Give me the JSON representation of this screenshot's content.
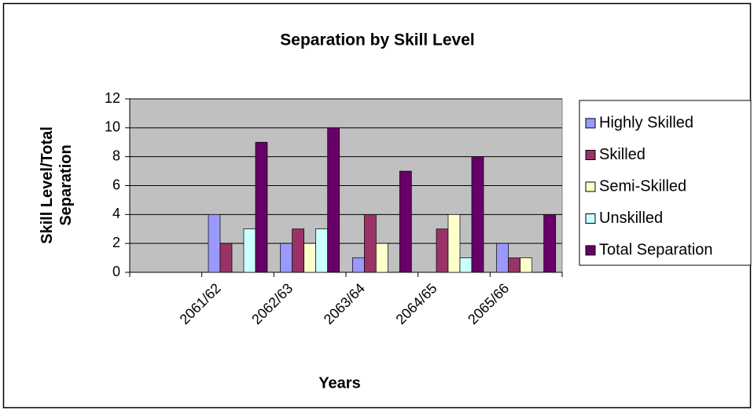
{
  "chart_data": {
    "type": "bar",
    "title": "Separation by Skill Level",
    "x_label": "Years",
    "y_label": "Skill Level/Total Separation",
    "categories": [
      null,
      "2061/62",
      "2062/63",
      "2063/64",
      "2064/65",
      "2065/66"
    ],
    "series": [
      {
        "name": "Highly Skilled",
        "color": "#9999ff",
        "values": [
          null,
          4,
          2,
          1,
          0,
          2
        ]
      },
      {
        "name": "Skilled",
        "color": "#993366",
        "values": [
          null,
          2,
          3,
          4,
          3,
          1
        ]
      },
      {
        "name": "Semi-Skilled",
        "color": "#ffffcc",
        "values": [
          null,
          0,
          2,
          2,
          4,
          1
        ]
      },
      {
        "name": "Unskilled",
        "color": "#ccffff",
        "values": [
          null,
          3,
          3,
          0,
          1,
          0
        ]
      },
      {
        "name": "Total Separation",
        "color": "#660066",
        "values": [
          null,
          9,
          10,
          7,
          8,
          4
        ]
      }
    ],
    "ylim": [
      0,
      12
    ],
    "yticks": [
      0,
      2,
      4,
      6,
      8,
      10,
      12
    ],
    "grid": true,
    "legend": "right"
  }
}
